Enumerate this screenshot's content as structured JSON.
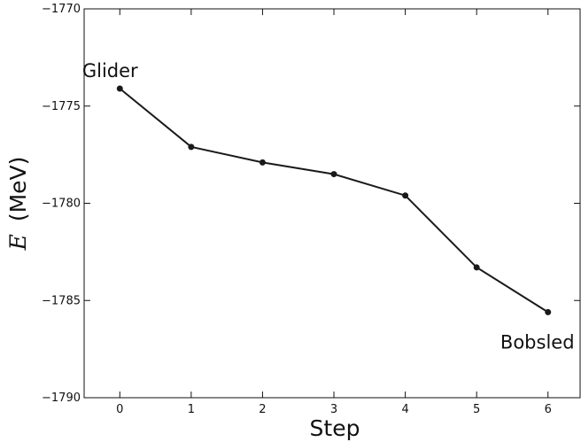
{
  "chart_data": {
    "type": "line",
    "xlabel": "Step",
    "ylabel_var": "E",
    "ylabel_unit": "(MeV)",
    "x": [
      0,
      1,
      2,
      3,
      4,
      5,
      6
    ],
    "series": [
      {
        "values": [
          -1774.1,
          -1777.1,
          -1777.9,
          -1778.5,
          -1779.6,
          -1783.3,
          -1785.6
        ]
      }
    ],
    "xlim": [
      -0.5,
      6.45
    ],
    "ylim": [
      -1790,
      -1770
    ],
    "xticks": [
      "0",
      "1",
      "2",
      "3",
      "4",
      "5",
      "6"
    ],
    "yticks": [
      "−1770",
      "−1775",
      "−1780",
      "−1785",
      "−1790"
    ],
    "ytick_values": [
      -1770,
      -1775,
      -1780,
      -1785,
      -1790
    ],
    "annotations": [
      {
        "text": "Glider",
        "x": 0,
        "y": -1774.1,
        "anchor": "above"
      },
      {
        "text": "Bobsled",
        "x": 6,
        "y": -1785.6,
        "anchor": "below"
      }
    ],
    "grid": false,
    "line_color": "#1a1a1a"
  }
}
